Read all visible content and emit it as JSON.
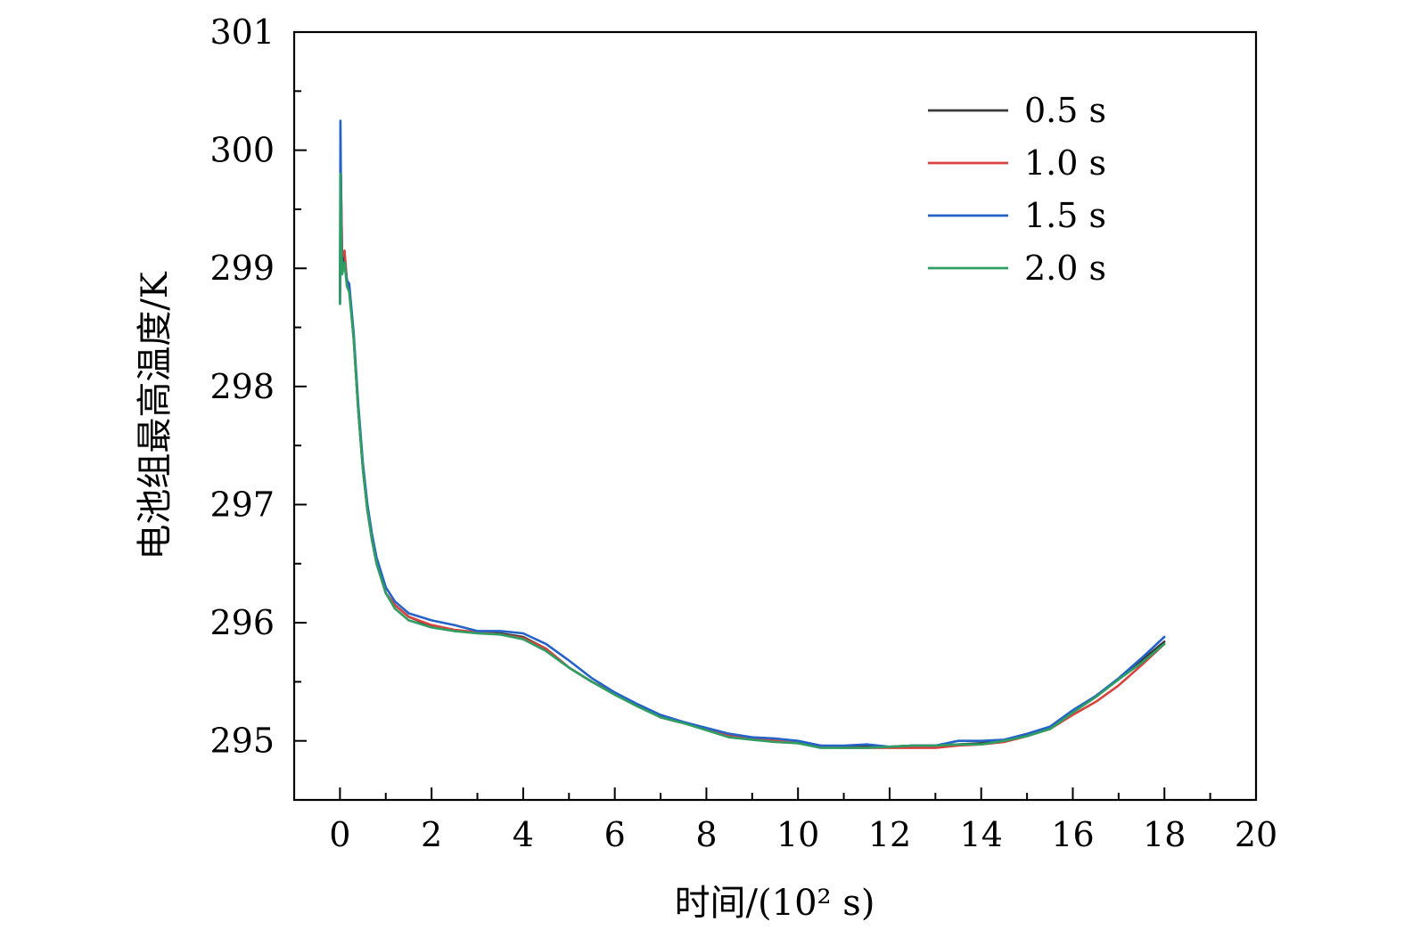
{
  "chart_data": {
    "type": "line",
    "xlabel": "时间/(10² s)",
    "ylabel": "电池组最高温度/K",
    "xlim": [
      -1,
      20
    ],
    "ylim": [
      294.5,
      301
    ],
    "xticks": [
      "0",
      "2",
      "4",
      "6",
      "8",
      "10",
      "12",
      "14",
      "16",
      "18",
      "20"
    ],
    "yticks": [
      "295",
      "296",
      "297",
      "298",
      "299",
      "300",
      "301"
    ],
    "grid": false,
    "legend_position": "top-right",
    "series": [
      {
        "name": "0.5 s",
        "color": "#3a3a3a",
        "x": [
          0,
          0.02,
          0.05,
          0.1,
          0.15,
          0.2,
          0.3,
          0.4,
          0.5,
          0.6,
          0.7,
          0.8,
          1.0,
          1.2,
          1.5,
          2.0,
          2.5,
          3.0,
          3.5,
          4.0,
          4.5,
          5.0,
          5.5,
          6.0,
          6.5,
          7.0,
          7.5,
          8.0,
          8.5,
          9.0,
          9.5,
          10.0,
          10.5,
          11.0,
          11.5,
          12.0,
          12.5,
          13.0,
          13.5,
          14.0,
          14.5,
          15.0,
          15.5,
          16.0,
          16.5,
          17.0,
          17.5,
          18.0
        ],
        "y": [
          298.8,
          299.8,
          299.0,
          299.1,
          298.9,
          298.85,
          298.4,
          297.8,
          297.3,
          296.95,
          296.7,
          296.5,
          296.25,
          296.15,
          296.05,
          295.97,
          295.93,
          295.92,
          295.91,
          295.88,
          295.78,
          295.62,
          295.5,
          295.4,
          295.3,
          295.2,
          295.15,
          295.1,
          295.05,
          295.02,
          295.0,
          294.98,
          294.96,
          294.95,
          294.95,
          294.95,
          294.96,
          294.96,
          294.97,
          294.98,
          295.0,
          295.05,
          295.1,
          295.25,
          295.38,
          295.52,
          295.68,
          295.84
        ]
      },
      {
        "name": "1.0 s",
        "color": "#d9433f",
        "x": [
          0,
          0.02,
          0.05,
          0.1,
          0.15,
          0.2,
          0.3,
          0.4,
          0.5,
          0.6,
          0.7,
          0.8,
          1.0,
          1.2,
          1.5,
          2.0,
          2.5,
          3.0,
          3.5,
          4.0,
          4.5,
          5.0,
          5.5,
          6.0,
          6.5,
          7.0,
          7.5,
          8.0,
          8.5,
          9.0,
          9.5,
          10.0,
          10.5,
          11.0,
          11.5,
          12.0,
          12.5,
          13.0,
          13.5,
          14.0,
          14.5,
          15.0,
          15.5,
          16.0,
          16.5,
          17.0,
          17.5,
          18.0
        ],
        "y": [
          298.75,
          299.7,
          299.1,
          299.15,
          298.9,
          298.85,
          298.4,
          297.8,
          297.3,
          296.95,
          296.7,
          296.5,
          296.25,
          296.15,
          296.05,
          295.98,
          295.94,
          295.92,
          295.9,
          295.87,
          295.78,
          295.62,
          295.5,
          295.4,
          295.3,
          295.2,
          295.15,
          295.1,
          295.04,
          295.02,
          295.0,
          294.98,
          294.95,
          294.94,
          294.94,
          294.94,
          294.94,
          294.94,
          294.96,
          294.97,
          294.99,
          295.04,
          295.1,
          295.22,
          295.33,
          295.47,
          295.64,
          295.82
        ]
      },
      {
        "name": "1.5 s",
        "color": "#2563c9",
        "x": [
          0,
          0.01,
          0.03,
          0.05,
          0.1,
          0.15,
          0.2,
          0.3,
          0.4,
          0.5,
          0.6,
          0.7,
          0.8,
          1.0,
          1.2,
          1.5,
          2.0,
          2.5,
          3.0,
          3.5,
          4.0,
          4.5,
          5.0,
          5.5,
          6.0,
          6.5,
          7.0,
          7.5,
          8.0,
          8.5,
          9.0,
          9.5,
          10.0,
          10.5,
          11.0,
          11.5,
          12.0,
          12.5,
          13.0,
          13.5,
          14.0,
          14.5,
          15.0,
          15.5,
          16.0,
          16.5,
          17.0,
          17.5,
          18.0
        ],
        "y": [
          298.7,
          300.25,
          299.3,
          299.0,
          299.05,
          298.9,
          298.87,
          298.45,
          297.85,
          297.35,
          297.0,
          296.75,
          296.55,
          296.3,
          296.18,
          296.08,
          296.02,
          295.98,
          295.93,
          295.93,
          295.91,
          295.82,
          295.68,
          295.53,
          295.41,
          295.31,
          295.22,
          295.16,
          295.11,
          295.06,
          295.03,
          295.02,
          295.0,
          294.96,
          294.96,
          294.97,
          294.95,
          294.96,
          294.96,
          295.0,
          295.0,
          295.01,
          295.06,
          295.12,
          295.26,
          295.38,
          295.53,
          295.7,
          295.88
        ]
      },
      {
        "name": "2.0 s",
        "color": "#2e9e63",
        "x": [
          0,
          0.01,
          0.03,
          0.05,
          0.1,
          0.15,
          0.2,
          0.3,
          0.4,
          0.5,
          0.6,
          0.7,
          0.8,
          1.0,
          1.2,
          1.5,
          2.0,
          2.5,
          3.0,
          3.5,
          4.0,
          4.5,
          5.0,
          5.5,
          6.0,
          6.5,
          7.0,
          7.5,
          8.0,
          8.5,
          9.0,
          9.5,
          10.0,
          10.5,
          11.0,
          11.5,
          12.0,
          12.5,
          13.0,
          13.5,
          14.0,
          14.5,
          15.0,
          15.5,
          16.0,
          16.5,
          17.0,
          17.5,
          18.0
        ],
        "y": [
          298.7,
          299.8,
          299.2,
          298.95,
          299.05,
          298.85,
          298.8,
          298.4,
          297.8,
          297.3,
          296.95,
          296.7,
          296.5,
          296.25,
          296.12,
          296.02,
          295.96,
          295.93,
          295.91,
          295.9,
          295.86,
          295.76,
          295.62,
          295.5,
          295.39,
          295.29,
          295.2,
          295.15,
          295.09,
          295.03,
          295.01,
          294.99,
          294.98,
          294.94,
          294.94,
          294.94,
          294.95,
          294.96,
          294.96,
          294.97,
          294.97,
          295.0,
          295.04,
          295.1,
          295.24,
          295.37,
          295.52,
          295.66,
          295.82
        ]
      }
    ]
  }
}
